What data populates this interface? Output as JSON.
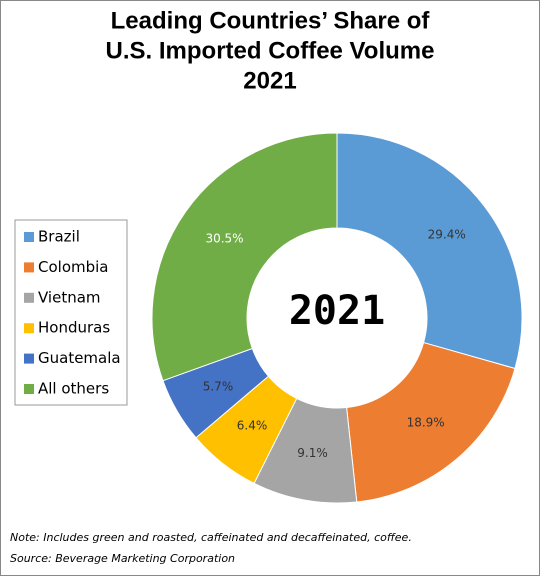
{
  "chart_data": {
    "type": "donut",
    "title": [
      "Leading Countries’ Share of",
      "U.S. Imported Coffee Volume",
      "2021"
    ],
    "center_label": "2021",
    "categories": [
      "Brazil",
      "Colombia",
      "Vietnam",
      "Honduras",
      "Guatemala",
      "All others"
    ],
    "values": [
      29.4,
      18.9,
      9.1,
      6.4,
      5.7,
      30.5
    ],
    "value_labels": [
      "29.4%",
      "18.9%",
      "9.1%",
      "6.4%",
      "5.7%",
      "30.5%"
    ],
    "colors": [
      "#5b9bd5",
      "#ed7d31",
      "#a5a5a5",
      "#ffc000",
      "#4472c4",
      "#70ad47"
    ],
    "legend": "left",
    "note": "Note:  Includes green and roasted, caffeinated and decaffeinated, coffee.",
    "source": "Source: Beverage Marketing Corporation"
  }
}
